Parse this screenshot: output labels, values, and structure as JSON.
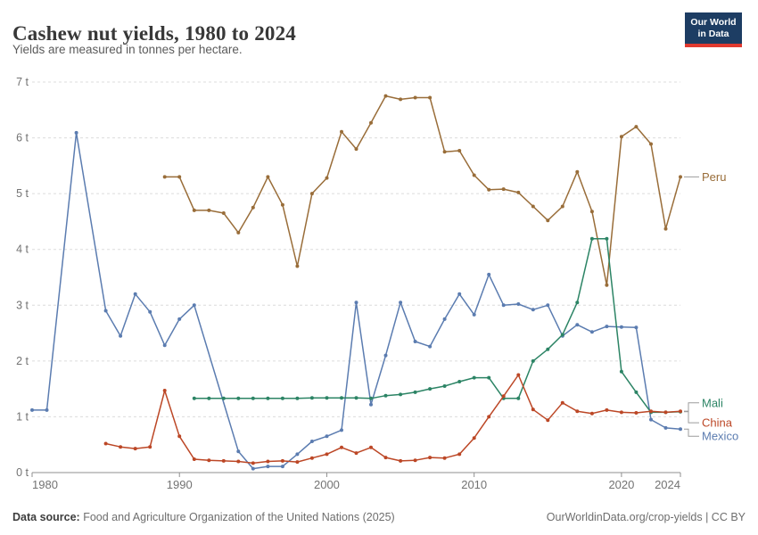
{
  "header": {
    "title": "Cashew nut yields, 1980 to 2024",
    "subtitle": "Yields are measured in tonnes per hectare.",
    "logo": {
      "line1": "Our World",
      "line2": "in Data"
    }
  },
  "footer": {
    "source_label": "Data source:",
    "source_text": " Food and Agriculture Organization of the United Nations (2025)",
    "credit": "OurWorldinData.org/crop-yields | CC BY"
  },
  "colors": {
    "logo_bg": "#1d3d63",
    "logo_bar": "#e0392f",
    "grid": "#dcdcdc",
    "axis": "#8f8f8f",
    "tick_label": "#737373"
  },
  "chart_data": {
    "type": "line",
    "title": "Cashew nut yields, 1980 to 2024",
    "xlabel": "",
    "ylabel": "tonnes per hectare",
    "x_range": [
      1980,
      2024
    ],
    "ylim": [
      0,
      7
    ],
    "grid": true,
    "legend_position": "end-of-line-labels",
    "y_tick_labels": [
      "0 t",
      "1 t",
      "2 t",
      "3 t",
      "4 t",
      "5 t",
      "6 t",
      "7 t"
    ],
    "x_ticks": [
      1980,
      1990,
      2000,
      2010,
      2020,
      2024
    ],
    "series": [
      {
        "name": "Peru",
        "color": "#996D39",
        "label_dy": 0,
        "points": [
          [
            1989,
            5.3
          ],
          [
            1990,
            5.3
          ],
          [
            1991,
            4.7
          ],
          [
            1992,
            4.7
          ],
          [
            1993,
            4.65
          ],
          [
            1994,
            4.3
          ],
          [
            1995,
            4.75
          ],
          [
            1996,
            5.3
          ],
          [
            1997,
            4.8
          ],
          [
            1998,
            3.7
          ],
          [
            1999,
            5.0
          ],
          [
            2000,
            5.28
          ],
          [
            2001,
            6.11
          ],
          [
            2002,
            5.8
          ],
          [
            2003,
            6.27
          ],
          [
            2004,
            6.75
          ],
          [
            2005,
            6.69
          ],
          [
            2006,
            6.72
          ],
          [
            2007,
            6.72
          ],
          [
            2008,
            5.75
          ],
          [
            2009,
            5.77
          ],
          [
            2010,
            5.33
          ],
          [
            2011,
            5.07
          ],
          [
            2012,
            5.08
          ],
          [
            2013,
            5.02
          ],
          [
            2014,
            4.77
          ],
          [
            2015,
            4.52
          ],
          [
            2016,
            4.77
          ],
          [
            2017,
            5.39
          ],
          [
            2018,
            4.68
          ],
          [
            2019,
            3.36
          ],
          [
            2020,
            6.02
          ],
          [
            2021,
            6.2
          ],
          [
            2022,
            5.89
          ],
          [
            2023,
            4.37
          ],
          [
            2024,
            5.3
          ]
        ]
      },
      {
        "name": "Mexico",
        "color": "#5b7cb0",
        "label_dy": 8,
        "points": [
          [
            1980,
            1.12
          ],
          [
            1981,
            1.12
          ],
          [
            1983,
            6.09
          ],
          [
            1985,
            2.9
          ],
          [
            1986,
            2.45
          ],
          [
            1987,
            3.2
          ],
          [
            1988,
            2.88
          ],
          [
            1989,
            2.28
          ],
          [
            1990,
            2.75
          ],
          [
            1991,
            3.0
          ],
          [
            1994,
            0.38
          ],
          [
            1995,
            0.07
          ],
          [
            1996,
            0.11
          ],
          [
            1997,
            0.11
          ],
          [
            1998,
            0.33
          ],
          [
            1999,
            0.56
          ],
          [
            2000,
            0.65
          ],
          [
            2001,
            0.76
          ],
          [
            2002,
            3.05
          ],
          [
            2003,
            1.22
          ],
          [
            2004,
            2.1
          ],
          [
            2005,
            3.05
          ],
          [
            2006,
            2.35
          ],
          [
            2007,
            2.26
          ],
          [
            2008,
            2.75
          ],
          [
            2009,
            3.2
          ],
          [
            2010,
            2.83
          ],
          [
            2011,
            3.55
          ],
          [
            2012,
            3.0
          ],
          [
            2013,
            3.02
          ],
          [
            2014,
            2.92
          ],
          [
            2015,
            3.0
          ],
          [
            2016,
            2.45
          ],
          [
            2017,
            2.65
          ],
          [
            2018,
            2.52
          ],
          [
            2019,
            2.62
          ],
          [
            2020,
            2.61
          ],
          [
            2021,
            2.6
          ],
          [
            2022,
            0.95
          ],
          [
            2023,
            0.8
          ],
          [
            2024,
            0.78
          ]
        ]
      },
      {
        "name": "Mali",
        "color": "#2C8465",
        "label_dy": -10,
        "points": [
          [
            1991,
            1.33
          ],
          [
            1992,
            1.33
          ],
          [
            1993,
            1.33
          ],
          [
            1994,
            1.33
          ],
          [
            1995,
            1.33
          ],
          [
            1996,
            1.33
          ],
          [
            1997,
            1.33
          ],
          [
            1998,
            1.33
          ],
          [
            1999,
            1.34
          ],
          [
            2000,
            1.34
          ],
          [
            2001,
            1.34
          ],
          [
            2002,
            1.34
          ],
          [
            2003,
            1.33
          ],
          [
            2004,
            1.38
          ],
          [
            2005,
            1.4
          ],
          [
            2006,
            1.44
          ],
          [
            2007,
            1.5
          ],
          [
            2008,
            1.55
          ],
          [
            2009,
            1.63
          ],
          [
            2010,
            1.7
          ],
          [
            2011,
            1.7
          ],
          [
            2012,
            1.33
          ],
          [
            2013,
            1.33
          ],
          [
            2014,
            2.0
          ],
          [
            2015,
            2.21
          ],
          [
            2016,
            2.47
          ],
          [
            2017,
            3.05
          ],
          [
            2018,
            4.19
          ],
          [
            2019,
            4.19
          ],
          [
            2020,
            1.81
          ],
          [
            2021,
            1.44
          ],
          [
            2022,
            1.08
          ],
          [
            2023,
            1.08
          ],
          [
            2024,
            1.09
          ]
        ]
      },
      {
        "name": "China",
        "color": "#bc4726",
        "label_dy": 13,
        "points": [
          [
            1985,
            0.52
          ],
          [
            1986,
            0.46
          ],
          [
            1987,
            0.43
          ],
          [
            1988,
            0.46
          ],
          [
            1989,
            1.47
          ],
          [
            1990,
            0.65
          ],
          [
            1991,
            0.24
          ],
          [
            1992,
            0.22
          ],
          [
            1993,
            0.21
          ],
          [
            1994,
            0.2
          ],
          [
            1995,
            0.17
          ],
          [
            1996,
            0.2
          ],
          [
            1997,
            0.21
          ],
          [
            1998,
            0.19
          ],
          [
            1999,
            0.26
          ],
          [
            2000,
            0.33
          ],
          [
            2001,
            0.45
          ],
          [
            2002,
            0.35
          ],
          [
            2003,
            0.45
          ],
          [
            2004,
            0.27
          ],
          [
            2005,
            0.21
          ],
          [
            2006,
            0.22
          ],
          [
            2007,
            0.27
          ],
          [
            2008,
            0.26
          ],
          [
            2009,
            0.33
          ],
          [
            2010,
            0.62
          ],
          [
            2011,
            1.0
          ],
          [
            2012,
            1.37
          ],
          [
            2013,
            1.75
          ],
          [
            2014,
            1.13
          ],
          [
            2015,
            0.94
          ],
          [
            2016,
            1.25
          ],
          [
            2017,
            1.1
          ],
          [
            2018,
            1.06
          ],
          [
            2019,
            1.12
          ],
          [
            2020,
            1.08
          ],
          [
            2021,
            1.07
          ],
          [
            2022,
            1.1
          ],
          [
            2023,
            1.08
          ],
          [
            2024,
            1.1
          ]
        ]
      }
    ]
  }
}
